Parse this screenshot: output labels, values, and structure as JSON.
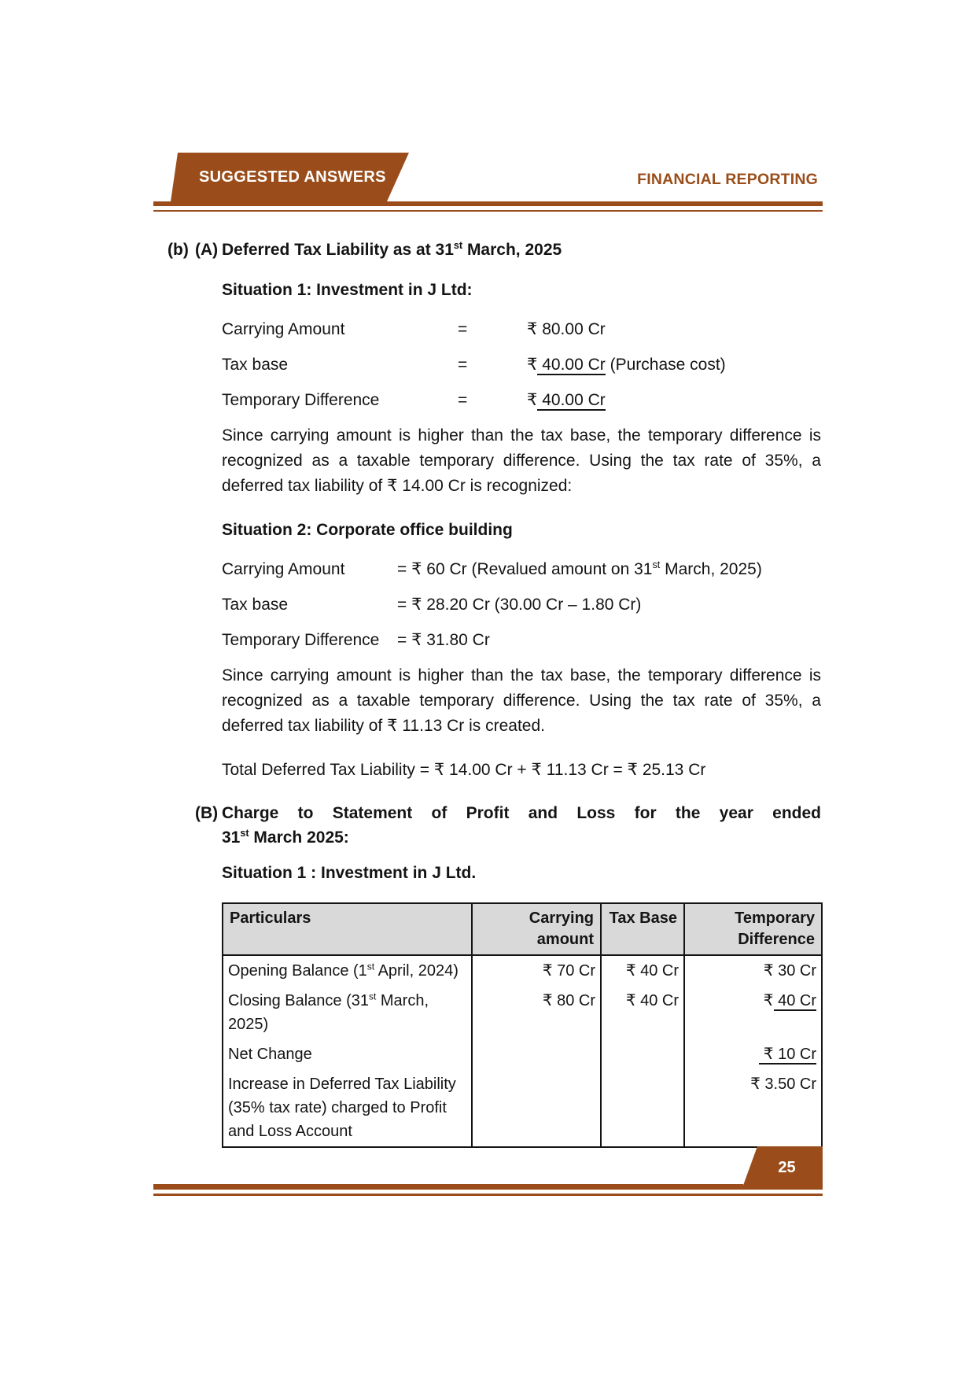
{
  "header": {
    "banner_title": "SUGGESTED ANSWERS",
    "subject": "FINANCIAL REPORTING"
  },
  "colors": {
    "brown": "#9A4D1A",
    "table_header_bg": "#D9D9D9"
  },
  "part_label": "(b)",
  "section_a": {
    "label": "(A)",
    "heading": [
      {
        "t": "Deferred Tax Liability as at 31"
      },
      {
        "t": "st",
        "sup": true
      },
      {
        "t": " March, 2025"
      }
    ],
    "situation1": {
      "title": "Situation 1: Investment in J Ltd:",
      "rows": [
        {
          "label": "Carrying Amount",
          "eq": "=",
          "pre": "₹ 80.00 Cr",
          "underlined": "",
          "post": ""
        },
        {
          "label": "Tax base",
          "eq": "=",
          "pre": "₹",
          "underlined": " 40.00 Cr",
          "post": " (Purchase cost)"
        },
        {
          "label": "Temporary Difference",
          "eq": "=",
          "pre": "₹",
          "underlined": " 40.00 Cr",
          "post": ""
        }
      ],
      "paragraph": "Since carrying amount is higher than the tax base, the temporary difference is recognized as a taxable temporary difference.  Using the tax rate of 35%, a deferred tax liability of ₹ 14.00 Cr is recognized:"
    },
    "situation2": {
      "title": "Situation 2: Corporate office building",
      "rows": [
        {
          "label": "Carrying Amount",
          "value": [
            {
              "t": "= ₹ 60 Cr (Revalued amount on 31"
            },
            {
              "t": "st",
              "sup": true
            },
            {
              "t": " March, 2025)"
            }
          ]
        },
        {
          "label": "Tax base",
          "value": [
            {
              "t": "= ₹ 28.20 Cr (30.00 Cr – 1.80 Cr)"
            }
          ]
        },
        {
          "label": "Temporary Difference",
          "value": [
            {
              "t": "= ₹ 31.80 Cr"
            }
          ]
        }
      ],
      "paragraph": "Since carrying amount is higher than the tax base, the temporary difference is recognized as a taxable temporary difference.  Using the tax rate of 35%, a deferred tax liability of ₹ 11.13 Cr is created.",
      "total": "Total Deferred Tax Liability = ₹ 14.00 Cr + ₹ 11.13 Cr = ₹ 25.13 Cr"
    }
  },
  "section_b": {
    "label": "(B)",
    "heading_line1": "Charge to Statement of Profit and Loss for the year ended",
    "heading_line2": [
      {
        "t": "31"
      },
      {
        "t": "st",
        "sup": true
      },
      {
        "t": " March 2025:"
      }
    ],
    "subtitle": "Situation 1 : Investment in J Ltd.",
    "table": {
      "headers": [
        "Particulars",
        "Carrying amount",
        "Tax Base",
        "Temporary Difference"
      ],
      "rows": [
        {
          "particulars": [
            {
              "t": "Opening Balance (1"
            },
            {
              "t": "st",
              "sup": true
            },
            {
              "t": " April, 2024)"
            }
          ],
          "carrying": "₹ 70 Cr",
          "tax_base": "₹ 40 Cr",
          "td_pre": "₹ 30 Cr",
          "td_underlined": ""
        },
        {
          "particulars": [
            {
              "t": "Closing Balance (31"
            },
            {
              "t": "st",
              "sup": true
            },
            {
              "t": " March, 2025)"
            }
          ],
          "carrying": "₹ 80 Cr",
          "tax_base": "₹ 40 Cr",
          "td_pre": "₹",
          "td_underlined": " 40 Cr"
        },
        {
          "particulars": [
            {
              "t": "Net Change"
            }
          ],
          "carrying": "",
          "tax_base": "",
          "td_pre": "",
          "td_underlined": " ₹ 10 Cr"
        },
        {
          "particulars": [
            {
              "t": "Increase in Deferred Tax Liability (35% tax rate) charged to Profit and Loss Account"
            }
          ],
          "carrying": "",
          "tax_base": "",
          "td_pre": "₹ 3.50 Cr",
          "td_underlined": ""
        }
      ]
    }
  },
  "footer": {
    "page_number": "25"
  }
}
